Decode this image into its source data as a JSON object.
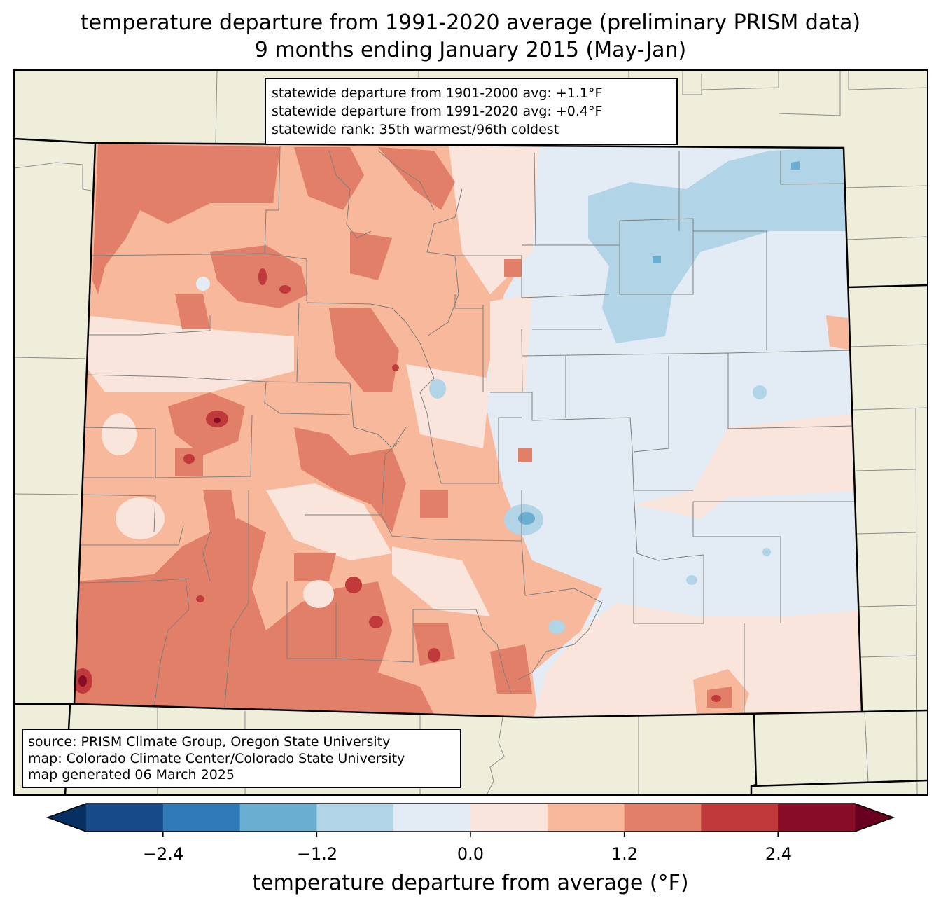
{
  "title": {
    "line1": "temperature departure from 1991-2020 average (preliminary PRISM data)",
    "line2": "9 months ending January 2015 (May-Jan)"
  },
  "stats": {
    "line1": "statewide departure from 1901-2000 avg: +1.1°F",
    "line2": "statewide departure from 1991-2020 avg: +0.4°F",
    "line3": "statewide rank: 35th warmest/96th coldest"
  },
  "credits": {
    "line1": "source: PRISM Climate Group, Oregon State University",
    "line2": "map: Colorado Climate Center/Colorado State University",
    "line3": "map generated 06 March 2025"
  },
  "colorbar": {
    "label": "temperature departure from average (°F)",
    "ticks": [
      "−2.4",
      "−1.2",
      "0.0",
      "1.2",
      "2.4"
    ],
    "bins": [
      {
        "from": -3.0,
        "to": -2.4,
        "color": "#174a88"
      },
      {
        "from": -2.4,
        "to": -1.8,
        "color": "#2f7ab8"
      },
      {
        "from": -1.8,
        "to": -1.2,
        "color": "#6aaed2"
      },
      {
        "from": -1.2,
        "to": -0.6,
        "color": "#b1d4e6"
      },
      {
        "from": -0.6,
        "to": 0.0,
        "color": "#e3ecf4"
      },
      {
        "from": 0.0,
        "to": 0.6,
        "color": "#f9e5dc"
      },
      {
        "from": 0.6,
        "to": 1.2,
        "color": "#f7b89c"
      },
      {
        "from": 1.2,
        "to": 1.8,
        "color": "#e27f68"
      },
      {
        "from": 1.8,
        "to": 2.4,
        "color": "#c0393b"
      },
      {
        "from": 2.4,
        "to": 3.0,
        "color": "#890c26"
      }
    ],
    "under_color": "#063062",
    "over_color": "#6a0020"
  },
  "colors": {
    "land": "#efeedb",
    "water_background": "#efeedb"
  }
}
